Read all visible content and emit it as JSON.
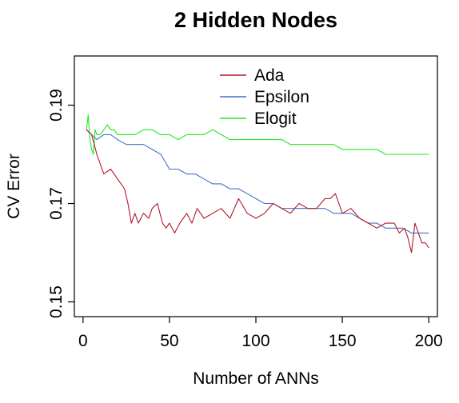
{
  "chart_data": {
    "type": "line",
    "title": "2 Hidden Nodes",
    "xlabel": "Number of ANNs",
    "ylabel": "CV Error",
    "xlim": [
      -5,
      205
    ],
    "ylim": [
      0.147,
      0.2
    ],
    "xticks": [
      0,
      50,
      100,
      150,
      200
    ],
    "yticks": [
      0.15,
      0.17,
      0.19
    ],
    "ytick_labels": [
      "0.15",
      "0.17",
      "0.19"
    ],
    "legend": {
      "position": "top-center",
      "entries": [
        "Ada",
        "Epsilon",
        "Elogit"
      ]
    },
    "series": [
      {
        "name": "Ada",
        "color": "#b2182b",
        "x": [
          2,
          5,
          8,
          12,
          16,
          20,
          24,
          26,
          28,
          30,
          32,
          35,
          38,
          40,
          43,
          46,
          48,
          50,
          53,
          56,
          58,
          60,
          63,
          66,
          70,
          75,
          80,
          85,
          90,
          95,
          100,
          105,
          110,
          115,
          120,
          125,
          130,
          135,
          140,
          143,
          146,
          148,
          150,
          155,
          160,
          165,
          170,
          175,
          180,
          183,
          186,
          188,
          190,
          192,
          194,
          196,
          198,
          200
        ],
        "y": [
          0.185,
          0.184,
          0.18,
          0.176,
          0.177,
          0.175,
          0.173,
          0.17,
          0.166,
          0.168,
          0.166,
          0.168,
          0.167,
          0.169,
          0.17,
          0.166,
          0.165,
          0.166,
          0.164,
          0.166,
          0.167,
          0.168,
          0.166,
          0.169,
          0.167,
          0.168,
          0.169,
          0.167,
          0.171,
          0.168,
          0.167,
          0.168,
          0.17,
          0.169,
          0.168,
          0.17,
          0.169,
          0.169,
          0.171,
          0.171,
          0.172,
          0.17,
          0.168,
          0.169,
          0.167,
          0.166,
          0.165,
          0.166,
          0.166,
          0.164,
          0.165,
          0.163,
          0.16,
          0.166,
          0.164,
          0.162,
          0.162,
          0.161
        ]
      },
      {
        "name": "Epsilon",
        "color": "#4472c4",
        "x": [
          2,
          5,
          8,
          12,
          16,
          20,
          25,
          30,
          35,
          40,
          45,
          50,
          55,
          60,
          65,
          70,
          75,
          80,
          85,
          90,
          95,
          100,
          105,
          110,
          115,
          120,
          125,
          130,
          135,
          140,
          145,
          150,
          155,
          160,
          165,
          170,
          175,
          180,
          185,
          190,
          195,
          200
        ],
        "y": [
          0.185,
          0.184,
          0.183,
          0.184,
          0.184,
          0.183,
          0.182,
          0.182,
          0.182,
          0.181,
          0.18,
          0.177,
          0.177,
          0.176,
          0.176,
          0.175,
          0.174,
          0.174,
          0.173,
          0.173,
          0.172,
          0.171,
          0.17,
          0.17,
          0.169,
          0.169,
          0.169,
          0.169,
          0.169,
          0.169,
          0.168,
          0.168,
          0.168,
          0.167,
          0.166,
          0.166,
          0.165,
          0.165,
          0.165,
          0.164,
          0.164,
          0.164
        ]
      },
      {
        "name": "Elogit",
        "color": "#22e822",
        "x": [
          2,
          3,
          4,
          5,
          6,
          7,
          8,
          10,
          12,
          14,
          16,
          18,
          20,
          25,
          30,
          35,
          40,
          45,
          50,
          55,
          60,
          65,
          70,
          75,
          80,
          85,
          90,
          95,
          100,
          105,
          110,
          115,
          120,
          125,
          130,
          135,
          140,
          145,
          150,
          155,
          160,
          165,
          170,
          175,
          180,
          185,
          190,
          195,
          200
        ],
        "y": [
          0.185,
          0.188,
          0.183,
          0.181,
          0.18,
          0.185,
          0.184,
          0.184,
          0.185,
          0.186,
          0.185,
          0.185,
          0.184,
          0.184,
          0.184,
          0.185,
          0.185,
          0.184,
          0.184,
          0.183,
          0.184,
          0.184,
          0.184,
          0.185,
          0.184,
          0.183,
          0.183,
          0.183,
          0.183,
          0.183,
          0.183,
          0.183,
          0.182,
          0.182,
          0.182,
          0.182,
          0.182,
          0.182,
          0.181,
          0.181,
          0.181,
          0.181,
          0.181,
          0.18,
          0.18,
          0.18,
          0.18,
          0.18,
          0.18
        ]
      }
    ]
  }
}
